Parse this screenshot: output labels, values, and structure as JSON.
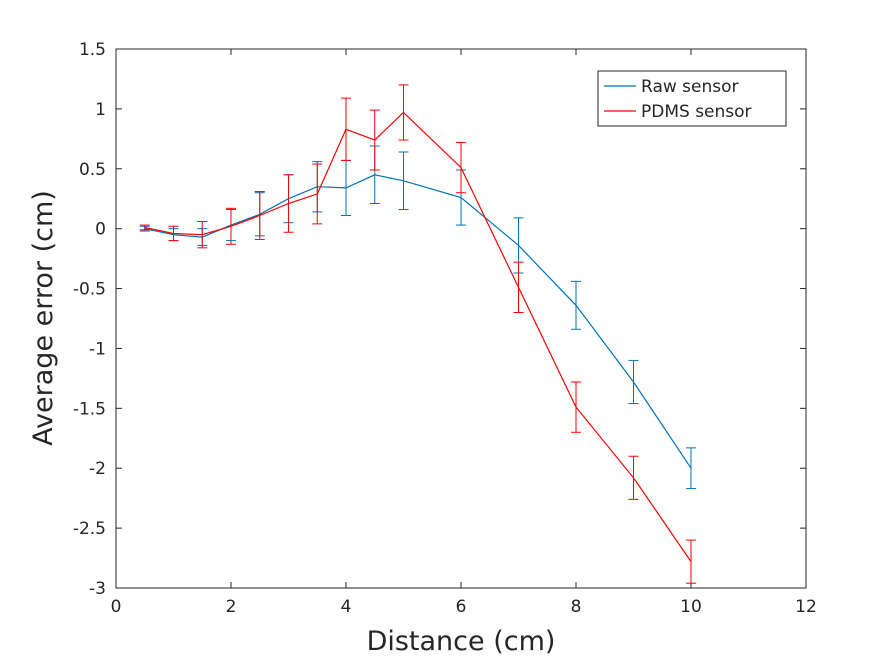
{
  "chart_data": {
    "type": "line",
    "title": "",
    "xlabel": "Distance (cm)",
    "ylabel": "Average error (cm)",
    "xlim": [
      0,
      12
    ],
    "ylim": [
      -3,
      1.5
    ],
    "xticks": [
      "0",
      "2",
      "4",
      "6",
      "8",
      "10",
      "12"
    ],
    "yticks": [
      "1.5",
      "1",
      "0.5",
      "0",
      "-0.5",
      "-1",
      "-1.5",
      "-2",
      "-2.5",
      "-3"
    ],
    "grid": false,
    "legend_position": "top-right",
    "series": [
      {
        "name": "Raw sensor",
        "color": "#0072BD",
        "x": [
          0.5,
          1,
          1.5,
          2,
          2.5,
          3,
          3.5,
          4,
          4.5,
          5,
          6,
          7,
          8,
          9,
          10
        ],
        "y": [
          0.0,
          -0.05,
          -0.07,
          0.03,
          0.12,
          0.25,
          0.35,
          0.34,
          0.45,
          0.4,
          0.26,
          -0.14,
          -0.64,
          -1.28,
          -2.0
        ],
        "err": [
          0.02,
          0.05,
          0.07,
          0.13,
          0.18,
          0.2,
          0.21,
          0.23,
          0.24,
          0.24,
          0.23,
          0.23,
          0.2,
          0.18,
          0.17
        ]
      },
      {
        "name": "PDMS sensor",
        "color": "#FF0000",
        "x": [
          0.5,
          1,
          1.5,
          2,
          2.5,
          3,
          3.5,
          4,
          4.5,
          5,
          6,
          7,
          8,
          9,
          10
        ],
        "y": [
          0.01,
          -0.04,
          -0.05,
          0.02,
          0.11,
          0.21,
          0.29,
          0.83,
          0.74,
          0.97,
          0.51,
          -0.49,
          -1.49,
          -2.08,
          -2.78
        ],
        "err": [
          0.02,
          0.06,
          0.11,
          0.15,
          0.2,
          0.24,
          0.25,
          0.26,
          0.25,
          0.23,
          0.21,
          0.21,
          0.21,
          0.18,
          0.18
        ]
      }
    ]
  }
}
